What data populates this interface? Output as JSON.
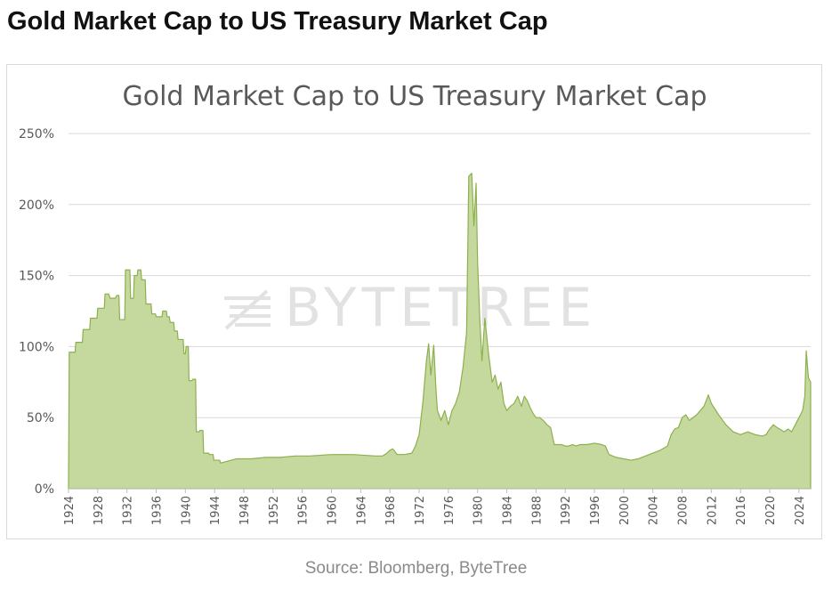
{
  "page_title": "Gold Market Cap to US Treasury Market Cap",
  "source": "Source: Bloomberg, ByteTree",
  "watermark": "BYTETREE",
  "colors": {
    "area_fill": "#c5d99f",
    "area_line": "#8db04e",
    "grid": "#d9d9d9",
    "axis_text": "#595959"
  },
  "chart_data": {
    "type": "area",
    "title": "Gold Market Cap to US Treasury Market Cap",
    "xlabel": "",
    "ylabel": "",
    "ylim": [
      0,
      2.5
    ],
    "xlim": [
      1924,
      2025.6
    ],
    "yticks": [
      0,
      0.5,
      1.0,
      1.5,
      2.0,
      2.5
    ],
    "ytick_labels": [
      "0%",
      "50%",
      "100%",
      "150%",
      "200%",
      "250%"
    ],
    "xticks": [
      "1924",
      "1928",
      "1932",
      "1936",
      "1940",
      "1944",
      "1948",
      "1952",
      "1956",
      "1960",
      "1964",
      "1968",
      "1972",
      "1976",
      "1980",
      "1984",
      "1988",
      "1992",
      "1996",
      "2000",
      "2004",
      "2008",
      "2012",
      "2016",
      "2020",
      "2024"
    ],
    "grid": true,
    "legend": "none",
    "series": [
      {
        "x": [
          1924.0,
          1924.1,
          1924.9,
          1925.0,
          1925.9,
          1926.0,
          1926.9,
          1927.0,
          1927.9,
          1928.0,
          1928.9,
          1929.0,
          1929.5,
          1929.7,
          1930.4,
          1930.6,
          1930.9,
          1931.0,
          1931.7,
          1931.8,
          1932.4,
          1932.5,
          1932.9,
          1933.0,
          1933.4,
          1933.5,
          1933.9,
          1934.0,
          1934.5,
          1934.6,
          1935.3,
          1935.4,
          1935.9,
          1936.0,
          1936.8,
          1936.9,
          1937.4,
          1937.5,
          1937.8,
          1937.9,
          1938.4,
          1938.5,
          1938.9,
          1939.0,
          1939.7,
          1939.8,
          1940.0,
          1940.1,
          1940.4,
          1940.5,
          1940.9,
          1941.0,
          1941.4,
          1941.5,
          1941.9,
          1942.0,
          1942.4,
          1942.5,
          1943.2,
          1943.3,
          1943.8,
          1943.9,
          1944.7,
          1944.8,
          1947.0,
          1949.0,
          1951.0,
          1953.0,
          1955.0,
          1957.0,
          1960.0,
          1963.0,
          1966.0,
          1967.0,
          1967.6,
          1968.0,
          1968.4,
          1969.0,
          1970.0,
          1971.0,
          1971.5,
          1972.0,
          1972.5,
          1973.0,
          1973.3,
          1973.6,
          1974.0,
          1974.3,
          1974.5,
          1975.0,
          1975.5,
          1976.0,
          1976.5,
          1977.0,
          1977.5,
          1978.0,
          1978.5,
          1978.8,
          1979.2,
          1979.5,
          1979.8,
          1980.0,
          1980.3,
          1980.6,
          1981.0,
          1981.5,
          1982.0,
          1982.4,
          1982.8,
          1983.2,
          1983.6,
          1984.0,
          1984.5,
          1985.0,
          1985.5,
          1986.0,
          1986.4,
          1986.8,
          1987.2,
          1987.6,
          1988.0,
          1988.5,
          1989.0,
          1989.5,
          1990.0,
          1990.5,
          1991.0,
          1991.5,
          1992.0,
          1992.5,
          1993.0,
          1993.5,
          1994.0,
          1995.0,
          1996.0,
          1997.0,
          1997.5,
          1998.0,
          1999.0,
          2000.0,
          2001.0,
          2002.0,
          2003.0,
          2004.0,
          2005.0,
          2006.0,
          2006.5,
          2007.0,
          2007.5,
          2008.0,
          2008.5,
          2009.0,
          2010.0,
          2011.0,
          2011.6,
          2012.0,
          2013.0,
          2014.0,
          2015.0,
          2016.0,
          2017.0,
          2018.0,
          2019.0,
          2019.5,
          2020.0,
          2020.5,
          2021.0,
          2022.0,
          2022.5,
          2023.0,
          2023.5,
          2024.0,
          2024.5,
          2024.8,
          2025.0,
          2025.3,
          2025.6
        ],
        "y": [
          0.0,
          0.96,
          0.96,
          1.03,
          1.03,
          1.12,
          1.12,
          1.2,
          1.2,
          1.27,
          1.27,
          1.37,
          1.37,
          1.34,
          1.34,
          1.36,
          1.36,
          1.19,
          1.19,
          1.54,
          1.54,
          1.34,
          1.34,
          1.5,
          1.5,
          1.54,
          1.54,
          1.47,
          1.47,
          1.3,
          1.3,
          1.23,
          1.23,
          1.21,
          1.21,
          1.25,
          1.25,
          1.21,
          1.21,
          1.17,
          1.17,
          1.11,
          1.11,
          1.05,
          1.05,
          0.95,
          0.95,
          1.0,
          1.0,
          0.76,
          0.76,
          0.77,
          0.77,
          0.4,
          0.4,
          0.41,
          0.41,
          0.25,
          0.25,
          0.24,
          0.24,
          0.2,
          0.2,
          0.18,
          0.21,
          0.21,
          0.22,
          0.22,
          0.23,
          0.23,
          0.24,
          0.24,
          0.23,
          0.23,
          0.25,
          0.27,
          0.28,
          0.24,
          0.24,
          0.25,
          0.3,
          0.38,
          0.6,
          0.9,
          1.02,
          0.8,
          1.01,
          0.7,
          0.55,
          0.48,
          0.55,
          0.45,
          0.55,
          0.6,
          0.68,
          0.85,
          1.1,
          2.2,
          2.22,
          1.85,
          2.15,
          1.6,
          1.2,
          0.9,
          1.2,
          0.95,
          0.75,
          0.8,
          0.7,
          0.75,
          0.6,
          0.55,
          0.58,
          0.6,
          0.65,
          0.58,
          0.65,
          0.62,
          0.57,
          0.53,
          0.5,
          0.5,
          0.48,
          0.45,
          0.43,
          0.31,
          0.31,
          0.31,
          0.3,
          0.3,
          0.31,
          0.3,
          0.31,
          0.31,
          0.32,
          0.31,
          0.3,
          0.24,
          0.22,
          0.21,
          0.2,
          0.21,
          0.23,
          0.25,
          0.27,
          0.3,
          0.38,
          0.42,
          0.43,
          0.5,
          0.52,
          0.48,
          0.52,
          0.58,
          0.66,
          0.6,
          0.52,
          0.45,
          0.4,
          0.38,
          0.4,
          0.38,
          0.37,
          0.38,
          0.42,
          0.45,
          0.43,
          0.4,
          0.42,
          0.4,
          0.45,
          0.5,
          0.55,
          0.65,
          0.97,
          0.78,
          0.75
        ]
      }
    ]
  }
}
